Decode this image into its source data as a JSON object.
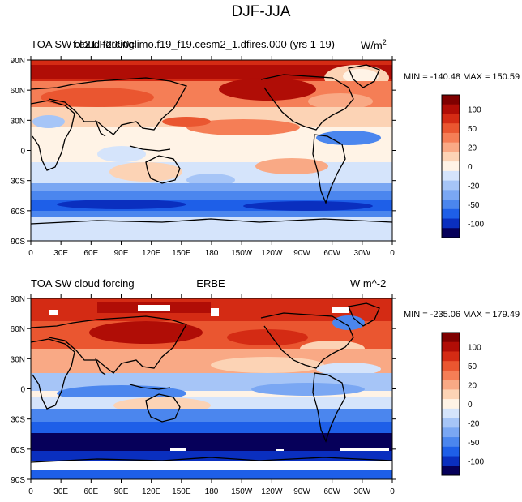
{
  "figure": {
    "title": "DJF-JJA"
  },
  "axes": {
    "lat_labels": [
      "90N",
      "60N",
      "30N",
      "0",
      "30S",
      "60S",
      "90S"
    ],
    "lon_labels": [
      "0",
      "30E",
      "60E",
      "90E",
      "120E",
      "150E",
      "180",
      "150W",
      "120W",
      "90W",
      "60W",
      "30W",
      "0"
    ]
  },
  "colorbar": {
    "colors": [
      "#06005a",
      "#0a2fbf",
      "#1e5fe8",
      "#4b86ee",
      "#7aa7f3",
      "#a6c5f7",
      "#d5e4fb",
      "#fff3e6",
      "#fcd3b5",
      "#f9a985",
      "#f57e56",
      "#ea5630",
      "#d42b14",
      "#b00d06",
      "#7f0000"
    ],
    "labels": [
      "100",
      "50",
      "20",
      "0",
      "-20",
      "-50",
      "-100"
    ]
  },
  "panels": [
    {
      "left_title": "TOA SW cloud forcing",
      "center_title": "cesm2_1.dfires.000",
      "overlap_title": "f.e21.F2000climo.f19_f19.cesm2_1.dfires.000 (yrs 1-19)",
      "units": "W/m",
      "units_sup": "2",
      "min_max": "MIN = -140.48 MAX = 150.59"
    },
    {
      "left_title": "TOA SW cloud forcing",
      "center_title": "ERBE",
      "units": "W m^-2",
      "min_max": "MIN = -235.06 MAX = 179.49"
    }
  ]
}
